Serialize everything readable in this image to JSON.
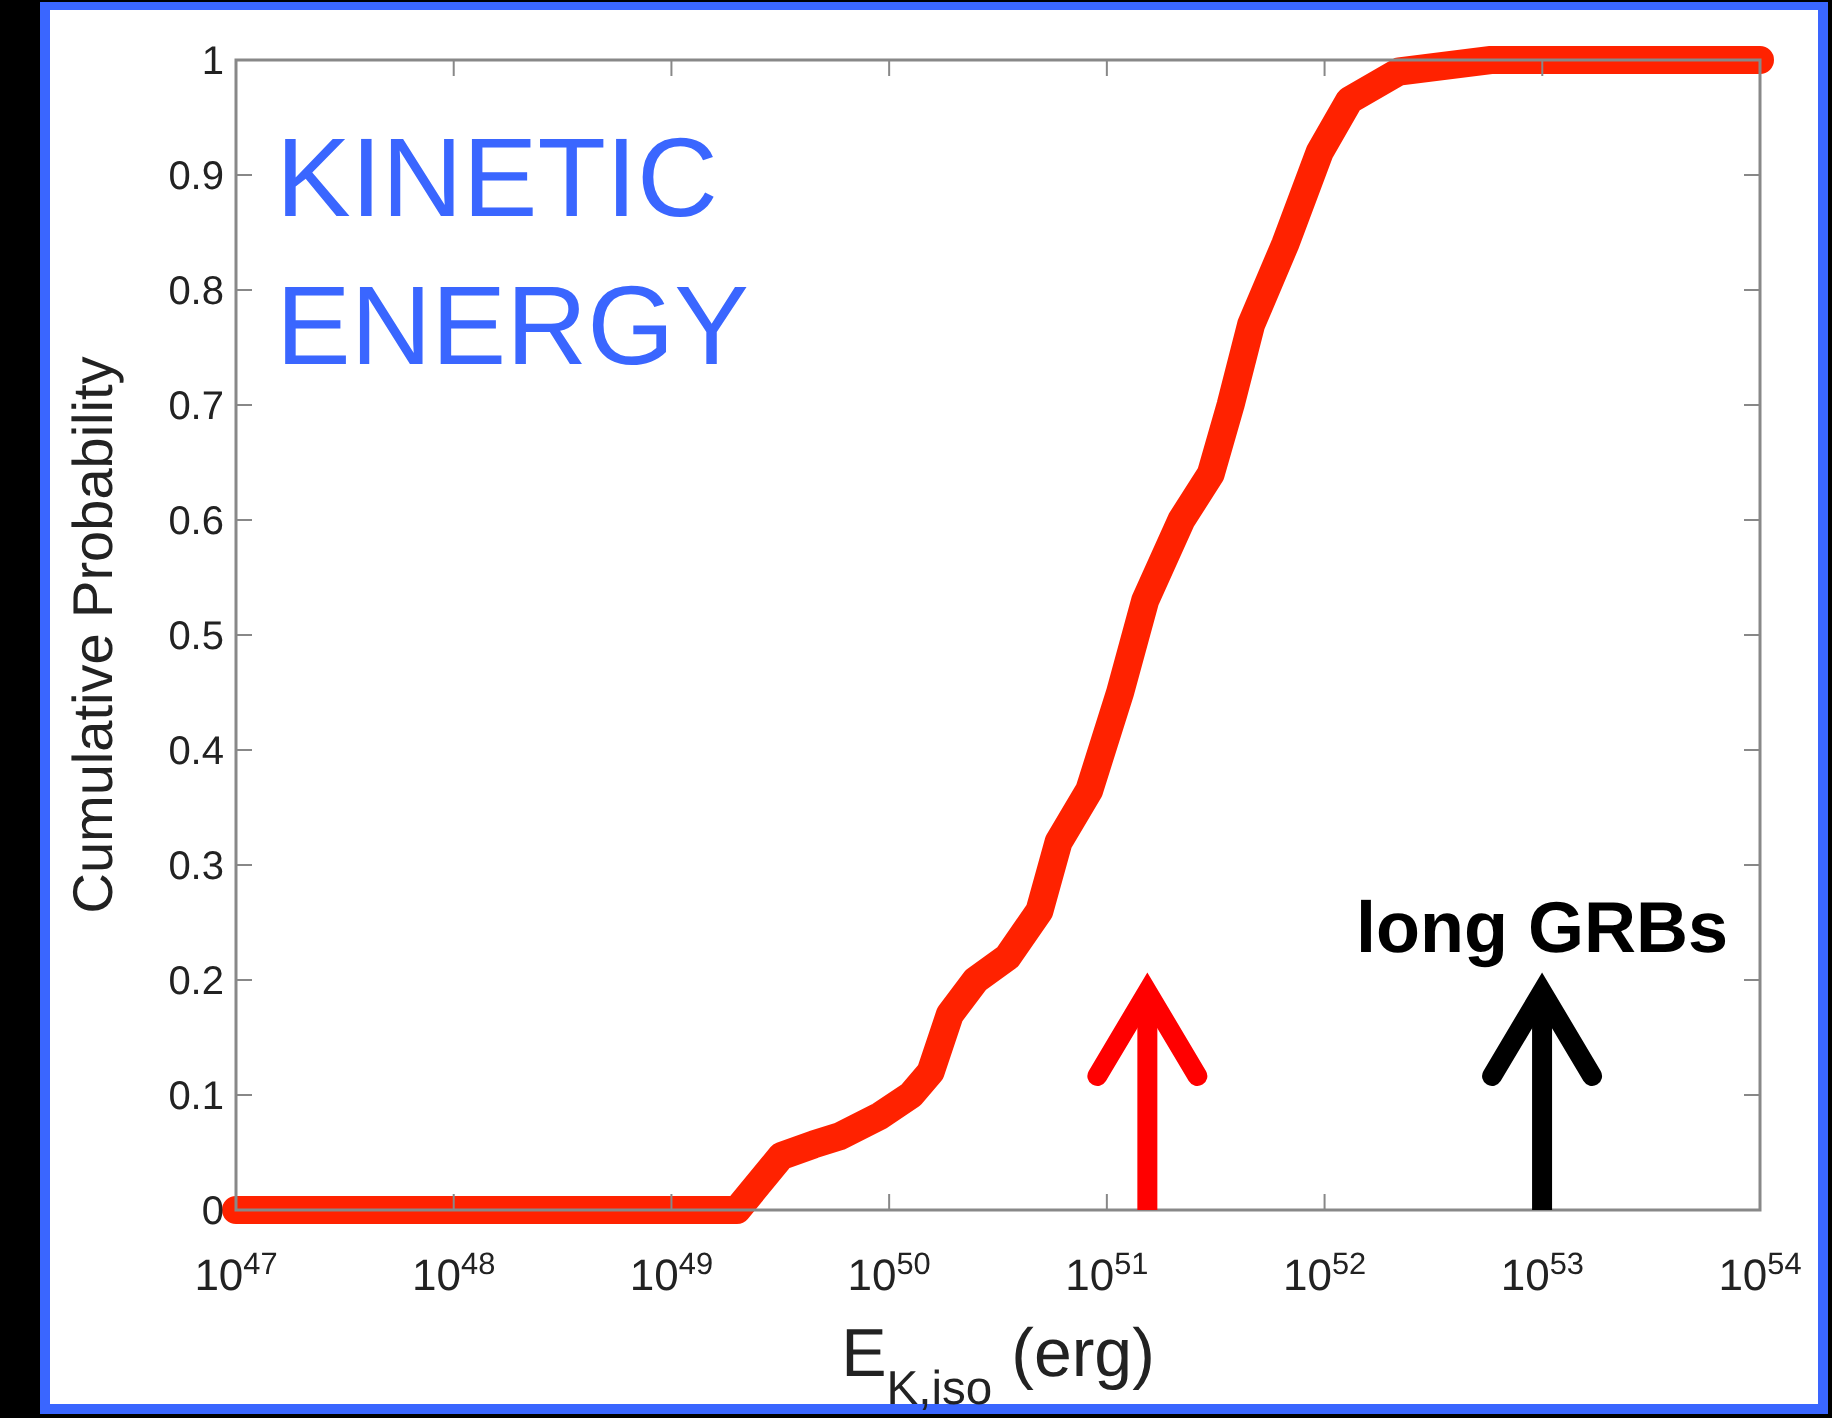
{
  "chart_data": {
    "type": "line",
    "title": "KINETIC ENERGY",
    "xlabel": "E$_{K,iso}$ (erg)",
    "ylabel": "Cumulative Probability",
    "log": "x",
    "grid": false,
    "line_style": "solid",
    "xlim": [
      1e+47,
      1e+54
    ],
    "xticks": [
      {
        "value": 1e+47,
        "label": "10$^{47}$"
      },
      {
        "value": 1e+48,
        "label": "10$^{48}$"
      },
      {
        "value": 1e+49,
        "label": "10$^{49}$"
      },
      {
        "value": 1e+50,
        "label": "10$^{50}$"
      },
      {
        "value": 1e+51,
        "label": "10$^{51}$"
      },
      {
        "value": 1e+52,
        "label": "10$^{52}$"
      },
      {
        "value": 1e+53,
        "label": "10$^{53}$"
      },
      {
        "value": 1e+54,
        "label": "10$^{54}$"
      }
    ],
    "ylim": [
      0,
      1
    ],
    "yticks": [
      0,
      0.1,
      0.2,
      0.3,
      0.4,
      0.5,
      0.6,
      0.7,
      0.8,
      0.9,
      1
    ],
    "annotations": [
      "long GRBs"
    ],
    "series": [
      {
        "color": "#ff2200",
        "x": [
          1e+47,
          1.7e+49,
          2e+49,
          3.2e+49,
          4.5e+49,
          5.9e+49,
          9.1e+49,
          1.26e+50,
          1.55e+50,
          1.9e+50,
          2.5e+50,
          3.5e+50,
          4.9e+50,
          6e+50,
          8.3e+50,
          1.15e+51,
          1.5e+51,
          2.2e+51,
          3e+51,
          3.7e+51,
          4.6e+51,
          6.6e+51,
          9.5e+51,
          1.3e+52,
          2.2e+52,
          5.8e+52,
          1e+54
        ],
        "values": [
          0,
          0,
          0,
          0.047,
          0.057,
          0.064,
          0.082,
          0.1,
          0.12,
          0.17,
          0.2,
          0.22,
          0.26,
          0.32,
          0.365,
          0.45,
          0.53,
          0.6,
          0.64,
          0.7,
          0.77,
          0.84,
          0.92,
          0.965,
          0.99,
          1,
          1
        ]
      }
    ]
  }
}
